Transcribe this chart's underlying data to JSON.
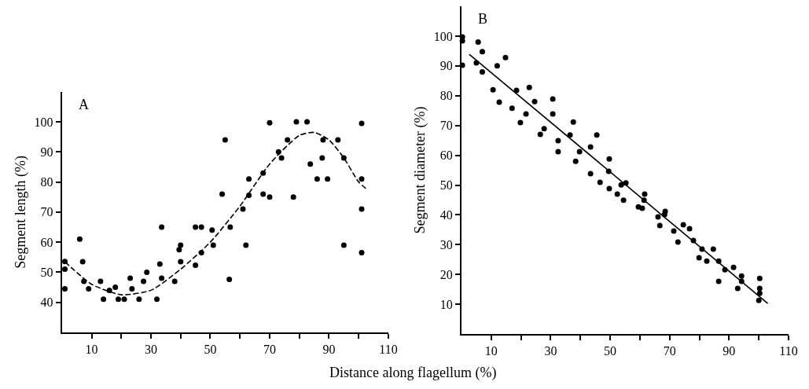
{
  "chart_data": [
    {
      "type": "scatter",
      "title": "A",
      "ylabel": "Segment length (%)",
      "xlabel": "Distance along flagellum (%)",
      "xlim": [
        0,
        110
      ],
      "ylim": [
        30,
        110
      ],
      "xticks": [
        10,
        {
          "value": 20,
          "label": null
        },
        30,
        {
          "value": 40,
          "label": null
        },
        50,
        {
          "value": 60,
          "label": null
        },
        70,
        {
          "value": 80,
          "label": null
        },
        90,
        {
          "value": 100,
          "label": null
        },
        110
      ],
      "yticks": [
        40,
        50,
        60,
        70,
        80,
        90,
        100
      ],
      "series": [
        {
          "marker": "circle",
          "color": "#000000",
          "x": [
            1,
            1,
            1,
            6,
            7,
            7.4,
            9,
            13,
            14,
            16,
            18,
            19,
            21,
            23,
            23.6,
            26,
            27.5,
            28.6,
            32,
            33,
            33.6,
            33.6,
            38,
            39.5,
            40,
            40,
            45,
            45,
            47,
            47,
            50.6,
            51,
            54,
            55,
            56.4,
            56.7,
            61,
            62,
            63,
            63,
            67.8,
            67.8,
            70,
            70,
            73,
            74,
            76,
            78,
            79,
            82.6,
            83.7,
            86,
            87.7,
            88,
            89.5,
            93,
            95,
            95,
            101,
            101,
            101,
            101
          ],
          "values": [
            53.6,
            51,
            44.5,
            61,
            53.5,
            47,
            44.5,
            47,
            41,
            44,
            45,
            41,
            41,
            48,
            44.5,
            41,
            47,
            50,
            41,
            52.7,
            65,
            48,
            47,
            57.5,
            59,
            53.5,
            65,
            52.3,
            65,
            56.5,
            64,
            59,
            76,
            94,
            47.6,
            65,
            71,
            59,
            75.6,
            81,
            76,
            83,
            75,
            99.7,
            90,
            88,
            94,
            75,
            100,
            100,
            86,
            81,
            88,
            94,
            81,
            94,
            59,
            88,
            99.5,
            81,
            71,
            56.5
          ]
        },
        {
          "type": "line",
          "marker": "none",
          "color": "#000000",
          "line_style": "dashed",
          "x": [
            1,
            10,
            20,
            30,
            40,
            50,
            60,
            70,
            80,
            85,
            90,
            95,
            100,
            103
          ],
          "values": [
            53.5,
            46,
            42.5,
            44,
            51,
            60,
            72,
            86,
            95.5,
            96.5,
            94,
            88,
            80,
            77.4
          ]
        }
      ]
    },
    {
      "type": "scatter",
      "title": "B",
      "ylabel": "Segment diameter (%)",
      "xlim": [
        0,
        110
      ],
      "ylim": [
        0,
        110
      ],
      "xticks": [
        10,
        {
          "value": 20,
          "label": null
        },
        30,
        {
          "value": 40,
          "label": null
        },
        50,
        {
          "value": 60,
          "label": null
        },
        70,
        {
          "value": 80,
          "label": null
        },
        90,
        {
          "value": 100,
          "label": null
        },
        110
      ],
      "yticks": [
        10,
        20,
        30,
        40,
        50,
        60,
        70,
        80,
        90,
        100
      ],
      "series": [
        {
          "marker": "circle",
          "color": "#000000",
          "x": [
            0.3,
            0.3,
            0.3,
            5.6,
            5,
            7,
            7,
            10.6,
            12.7,
            12,
            14.8,
            17,
            18.5,
            19.8,
            21.7,
            22.8,
            24.6,
            26.5,
            27.8,
            30.7,
            30.7,
            32.5,
            32.5,
            36.5,
            37.6,
            38.4,
            39.7,
            43.4,
            43.4,
            45.5,
            46.6,
            49.7,
            49.5,
            49.7,
            52.4,
            54.5,
            53.7,
            55.3,
            61.6,
            61.4,
            59.5,
            60.8,
            68.5,
            68.3,
            66.1,
            66.7,
            71.4,
            72.8,
            74.6,
            76.7,
            78,
            80.9,
            79.9,
            82.5,
            84.7,
            86.5,
            86.5,
            88.6,
            91.5,
            94.2,
            94.2,
            92.9,
            100.3,
            100.3,
            100.3,
            100
          ],
          "values": [
            99.7,
            98.4,
            90.2,
            98,
            91,
            94.8,
            88,
            82,
            77.8,
            90,
            92.8,
            75.8,
            81.8,
            71,
            73.9,
            82.8,
            78,
            67,
            68.9,
            78.9,
            73.9,
            64.9,
            61.2,
            66.8,
            71.2,
            58,
            61.2,
            62.8,
            53.8,
            66.8,
            50.9,
            58.8,
            54.6,
            48.8,
            47,
            44.9,
            50.1,
            50.7,
            47,
            44.9,
            42.7,
            42.2,
            41.2,
            40.1,
            39.3,
            36.4,
            34.6,
            30.9,
            36.7,
            35.4,
            31.4,
            28.5,
            25.6,
            24.5,
            28.5,
            24.5,
            17.7,
            21.6,
            22.4,
            19.5,
            17.7,
            15.3,
            18.7,
            15.3,
            13.7,
            11.3
          ]
        },
        {
          "type": "line",
          "marker": "none",
          "color": "#000000",
          "line_style": "solid",
          "x": [
            2.6,
            103
          ],
          "values": [
            93.9,
            10.3
          ]
        }
      ]
    }
  ]
}
